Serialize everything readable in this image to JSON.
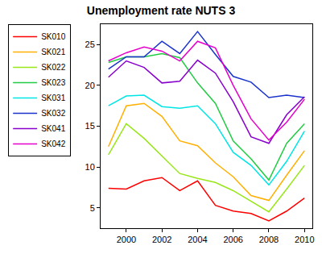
{
  "chart_data": {
    "type": "line",
    "title": "Unemployment rate NUTS 3",
    "x": [
      1999,
      2000,
      2001,
      2002,
      2003,
      2004,
      2005,
      2006,
      2007,
      2008,
      2009,
      2010
    ],
    "series": [
      {
        "name": "SK010",
        "color": "#ff0000",
        "values": [
          7.4,
          7.3,
          8.3,
          8.7,
          7.1,
          8.3,
          5.3,
          4.6,
          4.3,
          3.4,
          4.6,
          6.2
        ]
      },
      {
        "name": "SK021",
        "color": "#ffb000",
        "values": [
          12.5,
          17.5,
          17.8,
          16.2,
          13.2,
          12.6,
          10.5,
          8.8,
          6.5,
          5.9,
          9.0,
          12.0
        ]
      },
      {
        "name": "SK022",
        "color": "#99e619",
        "values": [
          11.5,
          15.3,
          13.5,
          11.3,
          9.2,
          8.6,
          8.1,
          7.1,
          5.8,
          4.5,
          7.3,
          10.2
        ]
      },
      {
        "name": "SK023",
        "color": "#22cc44",
        "values": [
          22.8,
          23.5,
          23.5,
          23.9,
          23.4,
          20.3,
          17.8,
          13.2,
          11.0,
          8.4,
          12.9,
          15.3
        ]
      },
      {
        "name": "SK031",
        "color": "#00e5e5",
        "values": [
          17.5,
          18.7,
          18.8,
          17.4,
          17.2,
          17.5,
          15.3,
          11.8,
          10.2,
          7.8,
          10.7,
          14.4
        ]
      },
      {
        "name": "SK032",
        "color": "#1a33cc",
        "values": [
          22.0,
          23.5,
          23.5,
          25.4,
          23.9,
          26.6,
          23.8,
          21.1,
          20.4,
          18.5,
          18.8,
          18.5
        ]
      },
      {
        "name": "SK041",
        "color": "#8800cc",
        "values": [
          21.0,
          23.0,
          22.2,
          20.3,
          20.5,
          23.1,
          21.5,
          18.0,
          13.7,
          12.9,
          16.4,
          18.6
        ]
      },
      {
        "name": "SK042",
        "color": "#e600cc",
        "values": [
          23.0,
          24.0,
          24.7,
          24.2,
          23.0,
          25.4,
          24.6,
          20.0,
          15.9,
          13.3,
          15.5,
          18.3
        ]
      }
    ],
    "xlim": [
      1998.56,
      2010.44
    ],
    "xticks": [
      2000,
      2002,
      2004,
      2006,
      2008,
      2010
    ],
    "ylim": [
      2.5,
      27.5
    ],
    "yticks": [
      5,
      10,
      15,
      20,
      25
    ],
    "grid": false,
    "legend": "top-left"
  }
}
